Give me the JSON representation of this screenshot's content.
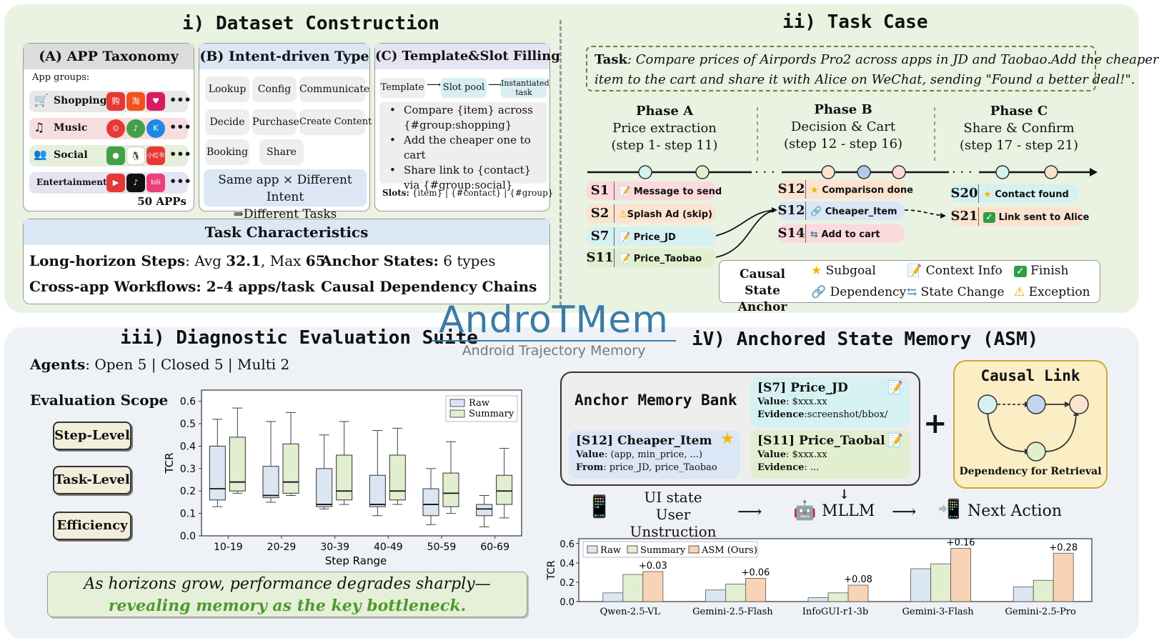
{
  "sections": {
    "dataset": "i) Dataset Construction",
    "task_case": "ii) Task Case",
    "diagnostic": "iii) Diagnostic Evaluation Suite",
    "asm": "iV) Anchored State Memory (ASM)"
  },
  "logo": {
    "name": "AndroTMem",
    "subtitle": "Android Trajectory Memory"
  },
  "taxonomy": {
    "header": "(A) APP Taxonomy",
    "groups_label": "App groups:",
    "groups": [
      "Shopping",
      "Music",
      "Social",
      "Entertainment"
    ],
    "count": "50 APPs",
    "more": "•••"
  },
  "intent": {
    "header": "(B) Intent-driven Type",
    "types": [
      "Lookup",
      "Config",
      "Communicate",
      "Decide",
      "Purchase",
      "Create Content",
      "Booking",
      "Share"
    ],
    "note_line1": "Same app × Different Intent",
    "note_line2": "⇒Different Tasks"
  },
  "template": {
    "header": "(C) Template&Slot Filling",
    "flow": [
      "Template",
      "Slot pool",
      "Instantiated task"
    ],
    "bullets": [
      "Compare {item} across {#group:shopping}",
      "Add the cheaper one to cart",
      "Share link to {contact} via {#group:social}"
    ],
    "slots_label": "Slots:",
    "slots": "{item} | {#contact} | {#group}"
  },
  "characteristics": {
    "header": "Task Characteristics",
    "long_label": "Long-horizon Steps",
    "long_text": ": Avg ",
    "avg": "32.1",
    "max_text": ", Max ",
    "max": "65",
    "anchor_label": "Anchor States:",
    "anchor_value": " 6 types",
    "cross": "Cross-app Workflows: 2–4 apps/task",
    "causal": "Causal Dependency Chains"
  },
  "task": {
    "label": "Task",
    "text_line1": ": Compare prices of Airpords Pro2 across apps in JD and Taobao.Add the cheaper",
    "text_line2": "item to the cart and share it with Alice on WeChat, sending \"Found a better deal!\"."
  },
  "phases": [
    {
      "name": "Phase A",
      "desc": "Price extraction",
      "steps": "(step 1- step 11)"
    },
    {
      "name": "Phase B",
      "desc": "Decision & Cart",
      "steps": "(step 12 - step 16)"
    },
    {
      "name": "Phase C",
      "desc": "Share & Confirm",
      "steps": "(step 17 - step 21)"
    }
  ],
  "steps": {
    "s1": {
      "id": "S1",
      "text": "Message to send"
    },
    "s2": {
      "id": "S2",
      "text": "Splash Ad (skip)"
    },
    "s7": {
      "id": "S7",
      "text": "Price_JD"
    },
    "s11": {
      "id": "S11",
      "text": "Price_Taobao"
    },
    "s12a": {
      "id": "S12",
      "text": "Comparison done"
    },
    "s12b": {
      "id": "S12",
      "text": "Cheaper_Item"
    },
    "s14": {
      "id": "S14",
      "text": "Add to cart"
    },
    "s20": {
      "id": "S20",
      "text": "Contact found"
    },
    "s21": {
      "id": "S21",
      "text": "Link sent to Alice"
    }
  },
  "anchor_legend": {
    "title_line1": "Causal State",
    "title_line2": "Anchor",
    "items": [
      "Subgoal",
      "Context Info",
      "Finish",
      "Dependency",
      "State Change",
      "Exception"
    ]
  },
  "eval": {
    "agents_label": "Agents",
    "agents": ": Open 5 | Closed 5 | Multi 2",
    "scope_title": "Evaluation Scope",
    "levels": [
      "Step-Level",
      "Task-Level",
      "Efficiency"
    ],
    "conclusion_line1": "As horizons grow, performance degrades sharply—",
    "conclusion_line2": "revealing memory as the key bottleneck."
  },
  "memory": {
    "bank_title": "Anchor Memory Bank",
    "card_s7": {
      "title": "[S7] Price_JD",
      "l1k": "Value",
      "l1v": ": $xxx.xx",
      "l2k": "Evidence",
      "l2v": ":screenshot/bbox/"
    },
    "card_s12": {
      "title": "[S12] Cheaper_Item",
      "l1k": "Value",
      "l1v": ": (app, min_price, ...)",
      "l2k": "From",
      "l2v": ": price_JD, price_Taobao"
    },
    "card_s11": {
      "title": "[S11] Price_Taobal",
      "l1k": "Value",
      "l1v": ": $xxx.xx",
      "l2k": "Evidence",
      "l2v": ": ..."
    },
    "plus": "+",
    "causal_title": "Causal Link",
    "causal_caption": "Dependency for Retrieval",
    "ui_state": "UI state",
    "user_instruction": "User Unstruction",
    "mllm": "MLLM",
    "next_action": "Next Action"
  },
  "colors": {
    "raw": "#dbe6f3",
    "summary": "#e1eecf",
    "asm": "#f8d3b5",
    "green_text": "#4e9a2f"
  },
  "chart_data": [
    {
      "type": "box",
      "xlabel": "Step Range",
      "ylabel": "TCR",
      "ylim": [
        0,
        0.65
      ],
      "yticks": [
        "0.0",
        "0.1",
        "0.2",
        "0.3",
        "0.4",
        "0.5",
        "0.6"
      ],
      "categories": [
        "10-19",
        "20-29",
        "30-39",
        "40-49",
        "50-59",
        "60-69"
      ],
      "legend": "top-right",
      "series": [
        {
          "name": "Raw",
          "boxes": [
            {
              "min": 0.13,
              "q1": 0.16,
              "median": 0.21,
              "q3": 0.4,
              "max": 0.52
            },
            {
              "min": 0.15,
              "q1": 0.17,
              "median": 0.18,
              "q3": 0.31,
              "max": 0.51
            },
            {
              "min": 0.12,
              "q1": 0.13,
              "median": 0.14,
              "q3": 0.3,
              "max": 0.45
            },
            {
              "min": 0.09,
              "q1": 0.13,
              "median": 0.14,
              "q3": 0.27,
              "max": 0.47
            },
            {
              "min": 0.05,
              "q1": 0.09,
              "median": 0.14,
              "q3": 0.21,
              "max": 0.3
            },
            {
              "min": 0.04,
              "q1": 0.09,
              "median": 0.12,
              "q3": 0.14,
              "max": 0.18
            }
          ]
        },
        {
          "name": "Summary",
          "boxes": [
            {
              "min": 0.19,
              "q1": 0.2,
              "median": 0.24,
              "q3": 0.44,
              "max": 0.57
            },
            {
              "min": 0.18,
              "q1": 0.19,
              "median": 0.24,
              "q3": 0.41,
              "max": 0.55
            },
            {
              "min": 0.14,
              "q1": 0.16,
              "median": 0.2,
              "q3": 0.36,
              "max": 0.51
            },
            {
              "min": 0.14,
              "q1": 0.16,
              "median": 0.2,
              "q3": 0.36,
              "max": 0.48
            },
            {
              "min": 0.1,
              "q1": 0.13,
              "median": 0.19,
              "q3": 0.28,
              "max": 0.42
            },
            {
              "min": 0.08,
              "q1": 0.14,
              "median": 0.2,
              "q3": 0.27,
              "max": 0.39
            }
          ]
        }
      ]
    },
    {
      "type": "bar",
      "ylabel": "TCR",
      "ylim": [
        0,
        0.65
      ],
      "yticks": [
        "0.0",
        "0.2",
        "0.4",
        "0.6"
      ],
      "categories": [
        "Qwen-2.5-VL",
        "Gemini-2.5-Flash",
        "InfoGUI-r1-3b",
        "Gemini-3-Flash",
        "Gemini-2.5-Pro"
      ],
      "legend": "top-left",
      "series": [
        {
          "name": "Raw",
          "values": [
            0.09,
            0.12,
            0.04,
            0.34,
            0.15
          ]
        },
        {
          "name": "Summary",
          "values": [
            0.28,
            0.18,
            0.09,
            0.39,
            0.22
          ]
        },
        {
          "name": "ASM (Ours)",
          "values": [
            0.31,
            0.24,
            0.17,
            0.55,
            0.5
          ]
        }
      ],
      "annotations": [
        "+0.03",
        "+0.06",
        "+0.08",
        "+0.16",
        "+0.28"
      ]
    }
  ]
}
